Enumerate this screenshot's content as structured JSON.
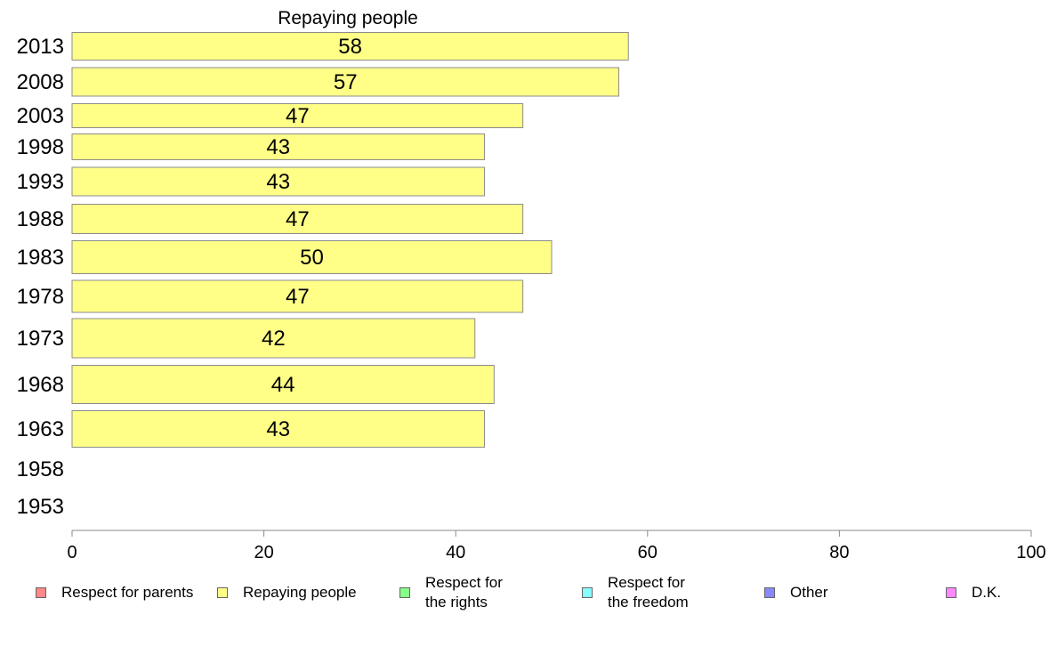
{
  "chart_data": {
    "type": "bar",
    "orientation": "horizontal",
    "title": "Repaying people",
    "categories": [
      "2013",
      "2008",
      "2003",
      "1998",
      "1993",
      "1988",
      "1983",
      "1978",
      "1973",
      "1968",
      "1963",
      "1958",
      "1953"
    ],
    "series": [
      {
        "name": "Repaying people",
        "color": "#ffff88",
        "values": [
          58,
          57,
          47,
          43,
          43,
          47,
          50,
          47,
          42,
          44,
          43,
          null,
          null
        ],
        "labels": [
          "58",
          "57",
          "47",
          "43",
          "43",
          "47",
          "50",
          "47",
          "42",
          "44",
          "43",
          "",
          ""
        ]
      }
    ],
    "xlim": [
      0,
      100
    ],
    "xticks": [
      "0",
      "20",
      "40",
      "60",
      "80",
      "100"
    ],
    "grid": false,
    "legend_position": "bottom"
  },
  "legend": [
    {
      "label": "Respect for parents",
      "color": "#ff8888"
    },
    {
      "label": "Repaying people",
      "color": "#ffff88"
    },
    {
      "label": "Respect for\nthe rights",
      "color": "#88ff88"
    },
    {
      "label": "Respect for\nthe freedom",
      "color": "#88ffff"
    },
    {
      "label": "Other",
      "color": "#8888ff"
    },
    {
      "label": "D.K.",
      "color": "#ff88ff"
    }
  ]
}
